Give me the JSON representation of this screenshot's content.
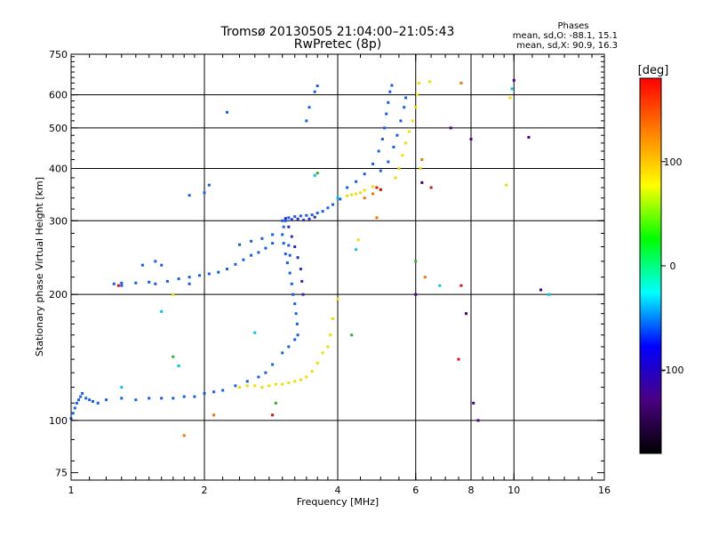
{
  "chart_data": {
    "type": "scatter",
    "title": "Tromsø 20130505 21:04:00–21:05:43",
    "subtitle": "RwPretec (8p)",
    "phases_header": "Phases",
    "phases_o": "mean, sd,O: -88.1, 15.1",
    "phases_x": "mean, sd,X:  90.9, 16.3",
    "xlabel": "Frequency [MHz]",
    "ylabel": "Stationary phase Virtual Height [km]",
    "xscale": "log",
    "yscale": "log",
    "xlim": [
      1,
      16
    ],
    "ylim": [
      72,
      750
    ],
    "xticks": [
      1,
      2,
      4,
      6,
      8,
      10,
      16
    ],
    "yticks": [
      75,
      100,
      200,
      300,
      400,
      500,
      600,
      750
    ],
    "grid": true,
    "grid_x": [
      2,
      4,
      6,
      8,
      10
    ],
    "grid_y": [
      100,
      200,
      300,
      400,
      500,
      600
    ],
    "colorbar": {
      "label": "[deg]",
      "range": [
        -180,
        180
      ],
      "ticks": [
        100,
        0,
        -100
      ],
      "colors": [
        "#000000",
        "#4b0082",
        "#0000ff",
        "#00ffff",
        "#00ff00",
        "#ffff00",
        "#ff8000",
        "#ff0000"
      ]
    },
    "series": [
      {
        "color": "#1b5cf0",
        "points": [
          [
            1.0,
            101
          ],
          [
            1.01,
            104
          ],
          [
            1.02,
            107
          ],
          [
            1.03,
            110
          ],
          [
            1.04,
            112
          ],
          [
            1.05,
            114
          ],
          [
            1.06,
            116
          ],
          [
            1.08,
            113
          ],
          [
            1.1,
            112
          ],
          [
            1.12,
            111
          ],
          [
            1.15,
            110
          ],
          [
            1.2,
            112
          ],
          [
            1.3,
            113
          ],
          [
            1.4,
            112
          ],
          [
            1.5,
            113
          ],
          [
            1.6,
            113
          ],
          [
            1.7,
            113
          ],
          [
            1.8,
            114
          ],
          [
            1.9,
            114
          ],
          [
            2.0,
            116
          ],
          [
            2.1,
            117
          ],
          [
            2.2,
            118
          ],
          [
            2.35,
            121
          ],
          [
            2.5,
            124
          ],
          [
            2.65,
            127
          ],
          [
            2.75,
            130
          ],
          [
            2.85,
            136
          ],
          [
            3.0,
            145
          ],
          [
            3.1,
            150
          ],
          [
            3.2,
            156
          ],
          [
            3.25,
            160
          ],
          [
            1.55,
            212
          ],
          [
            1.65,
            215
          ],
          [
            1.75,
            218
          ],
          [
            1.85,
            220
          ],
          [
            1.95,
            222
          ],
          [
            2.05,
            224
          ],
          [
            2.15,
            226
          ],
          [
            2.25,
            230
          ],
          [
            2.35,
            236
          ],
          [
            2.45,
            242
          ],
          [
            2.55,
            248
          ],
          [
            2.65,
            252
          ],
          [
            2.75,
            258
          ],
          [
            2.85,
            265
          ],
          [
            1.25,
            212
          ],
          [
            1.3,
            213
          ],
          [
            1.4,
            213
          ],
          [
            1.5,
            214
          ],
          [
            1.45,
            235
          ],
          [
            1.55,
            240
          ],
          [
            1.6,
            235
          ],
          [
            2.4,
            263
          ],
          [
            2.55,
            268
          ],
          [
            2.7,
            272
          ],
          [
            2.85,
            278
          ],
          [
            3.0,
            300
          ],
          [
            3.1,
            305
          ],
          [
            3.2,
            307
          ],
          [
            3.3,
            308
          ],
          [
            3.4,
            309
          ],
          [
            3.5,
            310
          ],
          [
            3.6,
            313
          ],
          [
            3.7,
            316
          ],
          [
            3.8,
            322
          ],
          [
            3.9,
            328
          ],
          [
            4.05,
            338
          ],
          [
            3.05,
            300
          ],
          [
            3.02,
            290
          ],
          [
            3.0,
            278
          ],
          [
            3.02,
            265
          ],
          [
            3.05,
            250
          ],
          [
            3.08,
            238
          ],
          [
            3.12,
            225
          ],
          [
            3.15,
            212
          ],
          [
            3.17,
            200
          ],
          [
            3.2,
            190
          ],
          [
            3.22,
            180
          ],
          [
            3.24,
            170
          ],
          [
            3.1,
            262
          ],
          [
            3.12,
            248
          ],
          [
            4.2,
            360
          ],
          [
            4.4,
            372
          ],
          [
            4.6,
            388
          ],
          [
            4.8,
            410
          ],
          [
            4.95,
            440
          ],
          [
            5.05,
            470
          ],
          [
            5.1,
            500
          ],
          [
            5.15,
            540
          ],
          [
            5.2,
            575
          ],
          [
            5.25,
            610
          ],
          [
            5.3,
            632
          ],
          [
            5.0,
            395
          ],
          [
            5.2,
            415
          ],
          [
            5.35,
            450
          ],
          [
            5.45,
            480
          ],
          [
            5.55,
            520
          ],
          [
            5.65,
            560
          ],
          [
            5.7,
            590
          ],
          [
            2.0,
            350
          ],
          [
            2.05,
            365
          ],
          [
            1.85,
            345
          ],
          [
            3.4,
            520
          ],
          [
            3.45,
            560
          ],
          [
            3.55,
            610
          ],
          [
            3.6,
            630
          ],
          [
            2.25,
            545
          ],
          [
            1.3,
            210
          ],
          [
            1.85,
            212
          ]
        ]
      },
      {
        "color": "#2c2cc6",
        "points": [
          [
            3.05,
            304
          ],
          [
            3.15,
            302
          ],
          [
            3.25,
            303
          ],
          [
            3.35,
            301
          ],
          [
            3.45,
            303
          ],
          [
            3.55,
            306
          ],
          [
            3.1,
            290
          ],
          [
            3.15,
            275
          ],
          [
            3.2,
            260
          ],
          [
            3.25,
            245
          ],
          [
            3.3,
            230
          ],
          [
            3.32,
            215
          ],
          [
            3.34,
            200
          ]
        ]
      },
      {
        "color": "#f0e000",
        "points": [
          [
            2.4,
            120
          ],
          [
            2.5,
            121
          ],
          [
            2.6,
            121
          ],
          [
            2.7,
            120
          ],
          [
            2.8,
            121
          ],
          [
            2.9,
            122
          ],
          [
            3.0,
            122
          ],
          [
            3.1,
            123
          ],
          [
            3.2,
            124
          ],
          [
            3.3,
            125
          ],
          [
            3.4,
            127
          ],
          [
            3.5,
            131
          ],
          [
            3.6,
            137
          ],
          [
            3.7,
            145
          ],
          [
            3.8,
            150
          ],
          [
            3.85,
            160
          ],
          [
            3.9,
            175
          ],
          [
            4.0,
            195
          ],
          [
            4.2,
            344
          ],
          [
            4.3,
            346
          ],
          [
            4.4,
            348
          ],
          [
            4.5,
            350
          ],
          [
            4.6,
            355
          ],
          [
            4.8,
            362
          ],
          [
            5.4,
            380
          ],
          [
            5.5,
            400
          ],
          [
            5.6,
            430
          ],
          [
            5.7,
            460
          ],
          [
            5.8,
            490
          ],
          [
            5.9,
            520
          ],
          [
            6.0,
            560
          ],
          [
            6.05,
            600
          ],
          [
            6.1,
            640
          ],
          [
            4.45,
            270
          ],
          [
            6.45,
            645
          ],
          [
            9.8,
            590
          ],
          [
            9.6,
            365
          ],
          [
            6.15,
            400
          ],
          [
            1.7,
            200
          ]
        ]
      },
      {
        "color": "#f07800",
        "points": [
          [
            4.6,
            340
          ],
          [
            4.8,
            348
          ],
          [
            5.0,
            356
          ],
          [
            6.3,
            220
          ],
          [
            7.6,
            640
          ],
          [
            4.9,
            305
          ],
          [
            6.2,
            420
          ],
          [
            1.8,
            92
          ],
          [
            2.1,
            103
          ]
        ]
      },
      {
        "color": "#e01010",
        "points": [
          [
            4.9,
            360
          ],
          [
            5.0,
            356
          ],
          [
            6.5,
            360
          ],
          [
            7.6,
            210
          ],
          [
            7.5,
            140
          ],
          [
            1.28,
            210
          ],
          [
            2.85,
            103
          ]
        ]
      },
      {
        "color": "#00c8e0",
        "points": [
          [
            3.55,
            385
          ],
          [
            4.4,
            256
          ],
          [
            9.9,
            620
          ],
          [
            12.0,
            200
          ],
          [
            2.6,
            162
          ],
          [
            1.3,
            120
          ],
          [
            6.8,
            210
          ],
          [
            4.0,
            340
          ],
          [
            1.6,
            182
          ],
          [
            1.75,
            135
          ]
        ]
      },
      {
        "color": "#30b030",
        "points": [
          [
            3.6,
            390
          ],
          [
            6.0,
            240
          ],
          [
            4.3,
            160
          ],
          [
            2.9,
            110
          ],
          [
            1.7,
            142
          ]
        ]
      },
      {
        "color": "#4b0082",
        "points": [
          [
            8.0,
            470
          ],
          [
            10.0,
            650
          ],
          [
            8.1,
            110
          ],
          [
            6.0,
            200
          ],
          [
            10.8,
            475
          ],
          [
            8.3,
            100
          ],
          [
            7.2,
            500
          ],
          [
            7.8,
            180
          ],
          [
            11.5,
            205
          ],
          [
            6.2,
            370
          ]
        ]
      }
    ]
  }
}
